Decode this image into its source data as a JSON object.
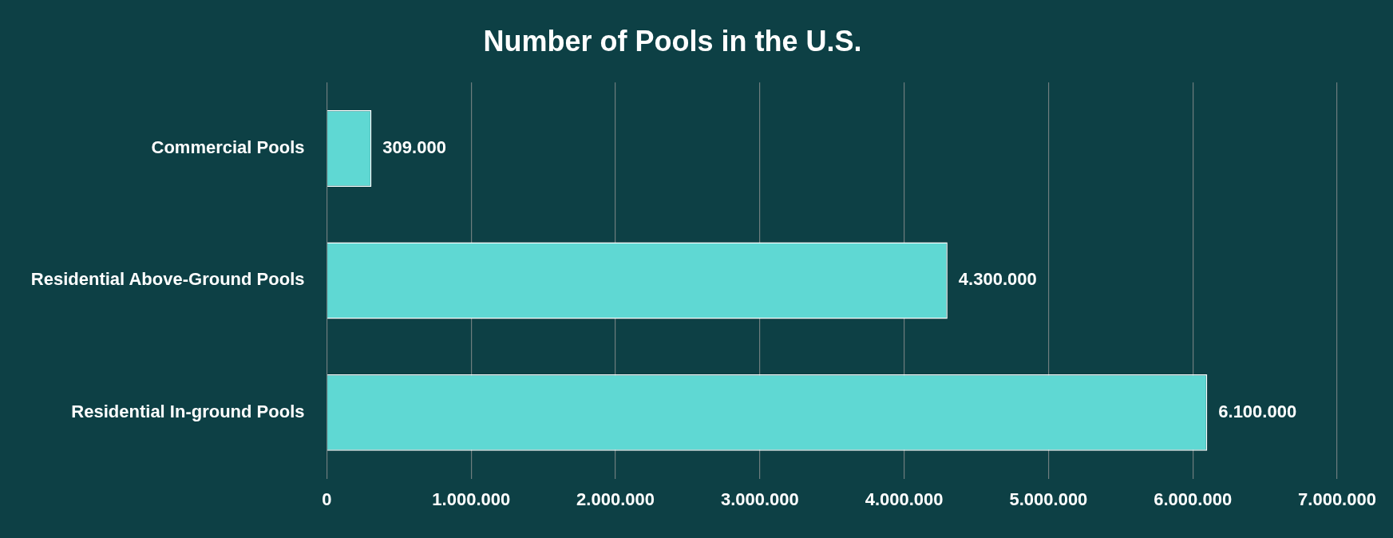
{
  "chart_data": {
    "type": "bar",
    "orientation": "horizontal",
    "title": "Number of Pools in the U.S.",
    "categories": [
      "Commercial Pools",
      "Residential Above-Ground Pools",
      "Residential In-ground Pools"
    ],
    "values": [
      309000,
      4300000,
      6100000
    ],
    "value_labels": [
      "309.000",
      "4.300.000",
      "6.100.000"
    ],
    "color": "#5fd8d3",
    "xlim": [
      0,
      7000000
    ],
    "xticks": [
      {
        "value": 0,
        "label": "0"
      },
      {
        "value": 1000000,
        "label": "1.000.000"
      },
      {
        "value": 2000000,
        "label": "2.000.000"
      },
      {
        "value": 3000000,
        "label": "3.000.000"
      },
      {
        "value": 4000000,
        "label": "4.000.000"
      },
      {
        "value": 5000000,
        "label": "5.000.000"
      },
      {
        "value": 6000000,
        "label": "6.000.000"
      },
      {
        "value": 7000000,
        "label": "7.000.000"
      }
    ],
    "grid": "x"
  }
}
